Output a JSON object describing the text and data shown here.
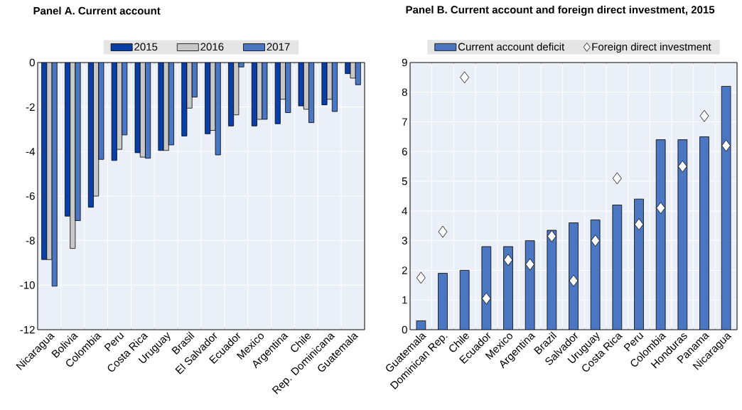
{
  "chart_data": [
    {
      "type": "bar",
      "title": "Panel A. Current account",
      "categories": [
        "Nicaragua",
        "Bolivia",
        "Colombia",
        "Peru",
        "Costa Rica",
        "Uruguay",
        "Brasil",
        "El Salvador",
        "Ecuador",
        "Mexico",
        "Argentina",
        "Chile",
        "Rep. Dominicana",
        "Guatemala"
      ],
      "series": [
        {
          "name": "2015",
          "color": "#0b3fa8",
          "values": [
            -8.85,
            -6.9,
            -6.5,
            -4.4,
            -4.05,
            -3.95,
            -3.3,
            -3.2,
            -2.85,
            -2.85,
            -2.75,
            -1.95,
            -1.9,
            -0.5
          ]
        },
        {
          "name": "2016",
          "color": "#c8c8c8",
          "values": [
            -8.85,
            -8.35,
            -6.0,
            -3.9,
            -4.25,
            -3.95,
            -2.05,
            -3.05,
            -2.35,
            -2.55,
            -1.65,
            -2.1,
            -1.65,
            -0.7
          ]
        },
        {
          "name": "2017",
          "color": "#4a76c2",
          "values": [
            -10.05,
            -7.1,
            -4.35,
            -3.25,
            -4.3,
            -3.7,
            -1.55,
            -4.15,
            -0.2,
            -2.55,
            -2.25,
            -2.7,
            -2.2,
            -1.0
          ]
        }
      ],
      "ylim": [
        -12,
        0
      ],
      "yticks": [
        -12,
        -10,
        -8,
        -6,
        -4,
        -2,
        0
      ],
      "grid": true,
      "legend": "top"
    },
    {
      "type": "bar",
      "title": "Panel B. Current account and foreign direct investment, 2015",
      "categories": [
        "Guatemala",
        "Dominican Rep.",
        "Chile",
        "Ecuador",
        "Mexico",
        "Argentina",
        "Brazil",
        "Salvador",
        "Uruguay",
        "Costa Rica",
        "Peru",
        "Colombia",
        "Honduras",
        "Panama",
        "Nicaragua"
      ],
      "series": [
        {
          "name": "Current account deficit",
          "type": "bar",
          "color": "#4a76c2",
          "values": [
            0.3,
            1.9,
            2.0,
            2.8,
            2.8,
            3.0,
            3.35,
            3.6,
            3.7,
            4.2,
            4.4,
            6.4,
            6.4,
            6.5,
            8.2
          ]
        },
        {
          "name": "Foreign direct investment",
          "type": "scatter",
          "marker": "diamond",
          "color": "#ffffff",
          "values": [
            1.75,
            3.3,
            8.5,
            1.05,
            2.35,
            2.2,
            3.15,
            1.65,
            3.0,
            5.1,
            3.55,
            4.1,
            5.5,
            7.2,
            6.2
          ]
        }
      ],
      "ylim": [
        0,
        9
      ],
      "yticks": [
        0,
        1,
        2,
        3,
        4,
        5,
        6,
        7,
        8,
        9
      ],
      "grid": true,
      "legend": "top"
    }
  ]
}
